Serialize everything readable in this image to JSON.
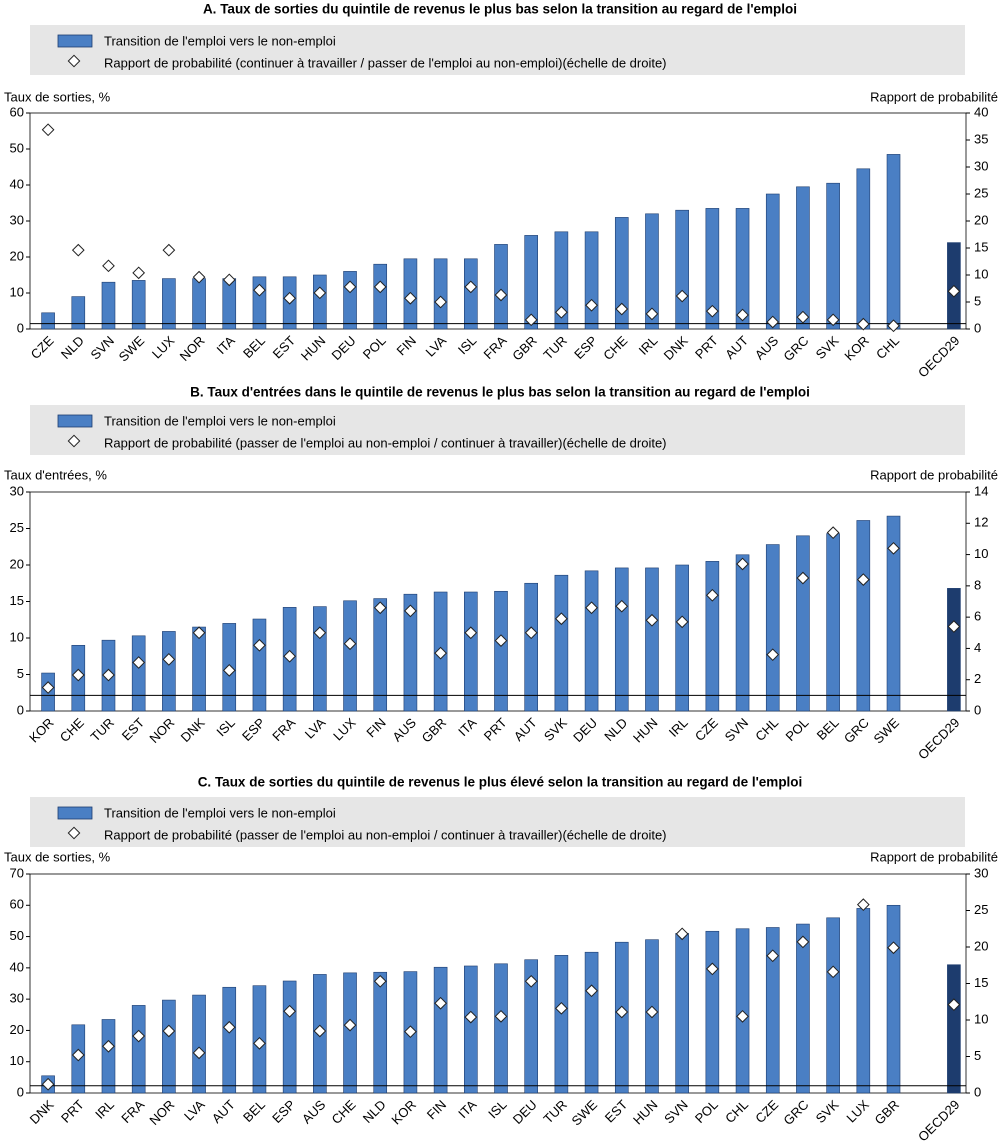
{
  "chart_data": [
    {
      "type": "bar",
      "title": "A. Taux de sorties du quintile de revenus le plus bas selon la transition au regard de l'emploi",
      "y_label": "Taux de sorties, %",
      "y2_label": "Rapport de probabilité",
      "categories": [
        "CZE",
        "NLD",
        "SVN",
        "SWE",
        "LUX",
        "NOR",
        "ITA",
        "BEL",
        "EST",
        "HUN",
        "DEU",
        "POL",
        "FIN",
        "LVA",
        "ISL",
        "FRA",
        "GBR",
        "TUR",
        "ESP",
        "CHE",
        "IRL",
        "DNK",
        "PRT",
        "AUT",
        "AUS",
        "GRC",
        "SVK",
        "KOR",
        "CHL",
        null,
        "OECD29"
      ],
      "series": [
        {
          "name": "Transition de l'emploi vers le non-emploi",
          "color": "#4a7fc4",
          "values": [
            4.5,
            9,
            13,
            13.5,
            14,
            14,
            14,
            14.5,
            14.5,
            15,
            16,
            18,
            19.5,
            19.5,
            19.5,
            23.5,
            26,
            27,
            27,
            31,
            32,
            33,
            33.5,
            33.5,
            37.5,
            39.5,
            40.5,
            44.5,
            48.5,
            null,
            24
          ]
        },
        {
          "name": " Rapport de probabilité (continuer à travailler / passer de l'emploi au non-emploi)(échelle de droite)",
          "color": "#ffffff",
          "axis": "y2",
          "values": [
            36.9,
            14.6,
            11.7,
            10.4,
            14.6,
            9.6,
            9.1,
            7.2,
            5.7,
            6.7,
            7.8,
            7.8,
            5.7,
            5,
            7.8,
            6.3,
            1.7,
            3.1,
            4.4,
            3.7,
            2.8,
            6.1,
            3.3,
            2.6,
            1.3,
            2.2,
            1.7,
            0.9,
            0.6,
            null,
            7
          ]
        }
      ],
      "highlight_index": 30,
      "highlight_color": "#1d3c6e",
      "ylim": [
        0,
        60
      ],
      "yticks": [
        0,
        10,
        20,
        30,
        40,
        50,
        60
      ],
      "y2lim": [
        0,
        40
      ],
      "y2ticks": [
        0,
        5,
        10,
        15,
        20,
        25,
        30,
        35,
        40
      ],
      "y2_reference": 1
    },
    {
      "type": "bar",
      "title": "B. Taux d'entrées dans le quintile de revenus le plus bas selon la transition au regard de l'emploi",
      "y_label": "Taux d'entrées, %",
      "y2_label": "Rapport de probabilité",
      "categories": [
        "KOR",
        "CHE",
        "TUR",
        "EST",
        "NOR",
        "DNK",
        "ISL",
        "ESP",
        "FRA",
        "LVA",
        "LUX",
        "FIN",
        "AUS",
        "GBR",
        "ITA",
        "PRT",
        "AUT",
        "SVK",
        "DEU",
        "NLD",
        "HUN",
        "IRL",
        "CZE",
        "SVN",
        "CHL",
        "POL",
        "BEL",
        "GRC",
        "SWE",
        null,
        "OECD29"
      ],
      "series": [
        {
          "name": "Transition de l'emploi vers le non-emploi",
          "color": "#4a7fc4",
          "values": [
            5.2,
            9,
            9.7,
            10.3,
            10.9,
            11.5,
            12,
            12.6,
            14.2,
            14.3,
            15.1,
            15.4,
            16,
            16.3,
            16.3,
            16.4,
            17.5,
            18.6,
            19.2,
            19.6,
            19.6,
            20,
            20.5,
            21.4,
            22.8,
            24,
            24.3,
            26.1,
            26.7,
            null,
            16.8
          ]
        },
        {
          "name": "Rapport de probabilité (passer de l'emploi au non-emploi / continuer à travailler)(échelle de droite)",
          "color": "#ffffff",
          "axis": "y2",
          "values": [
            1.5,
            2.3,
            2.3,
            3.1,
            3.3,
            5,
            2.6,
            4.2,
            3.5,
            5,
            4.3,
            6.6,
            6.4,
            3.7,
            5,
            4.5,
            5,
            5.9,
            6.6,
            6.7,
            5.8,
            5.7,
            7.4,
            9.4,
            3.6,
            8.5,
            11.4,
            8.4,
            10.4,
            null,
            5.4
          ]
        }
      ],
      "highlight_index": 30,
      "highlight_color": "#1d3c6e",
      "ylim": [
        0,
        30
      ],
      "yticks": [
        0,
        5,
        10,
        15,
        20,
        25,
        30
      ],
      "y2lim": [
        0,
        14
      ],
      "y2ticks": [
        0,
        2,
        4,
        6,
        8,
        10,
        12,
        14
      ],
      "y2_reference": 1
    },
    {
      "type": "bar",
      "title": "C. Taux de sorties du quintile de revenus le plus élevé selon la transition au regard de l'emploi",
      "y_label": "Taux de sorties, %",
      "y2_label": "Rapport de probabilité",
      "categories": [
        "DNK",
        "PRT",
        "IRL",
        "FRA",
        "NOR",
        "LVA",
        "AUT",
        "BEL",
        "ESP",
        "AUS",
        "CHE",
        "NLD",
        "KOR",
        "FIN",
        "ITA",
        "ISL",
        "DEU",
        "TUR",
        "SWE",
        "EST",
        "HUN",
        "SVN",
        "POL",
        "CHL",
        "CZE",
        "GRC",
        "SVK",
        "LUX",
        "GBR",
        null,
        "OECD29"
      ],
      "series": [
        {
          "name": "Transition de l'emploi vers le non-emploi",
          "color": "#4a7fc4",
          "values": [
            5.5,
            21.8,
            23.5,
            28,
            29.7,
            31.3,
            33.8,
            34.3,
            35.8,
            37.9,
            38.4,
            38.6,
            38.8,
            40.2,
            40.6,
            41.3,
            42.6,
            44,
            45,
            48.2,
            49,
            51,
            51.7,
            52.5,
            52.9,
            54,
            56,
            59,
            60,
            null,
            41
          ]
        },
        {
          "name": "Rapport de probabilité (passer de l'emploi au non-emploi / continuer à travailler)(échelle de droite)",
          "color": "#ffffff",
          "axis": "y2",
          "values": [
            1.2,
            5.2,
            6.4,
            7.8,
            8.5,
            5.5,
            9,
            6.8,
            11.2,
            8.5,
            9.3,
            15.3,
            8.4,
            12.3,
            10.4,
            10.5,
            15.3,
            11.6,
            14,
            11.1,
            11.1,
            21.8,
            17,
            10.5,
            18.8,
            20.7,
            16.6,
            25.8,
            19.9,
            null,
            12.1
          ]
        }
      ],
      "highlight_index": 30,
      "highlight_color": "#1d3c6e",
      "ylim": [
        0,
        70
      ],
      "yticks": [
        0,
        10,
        20,
        30,
        40,
        50,
        60,
        70
      ],
      "y2lim": [
        0,
        30
      ],
      "y2ticks": [
        0,
        5,
        10,
        15,
        20,
        25,
        30
      ],
      "y2_reference": 1
    }
  ]
}
